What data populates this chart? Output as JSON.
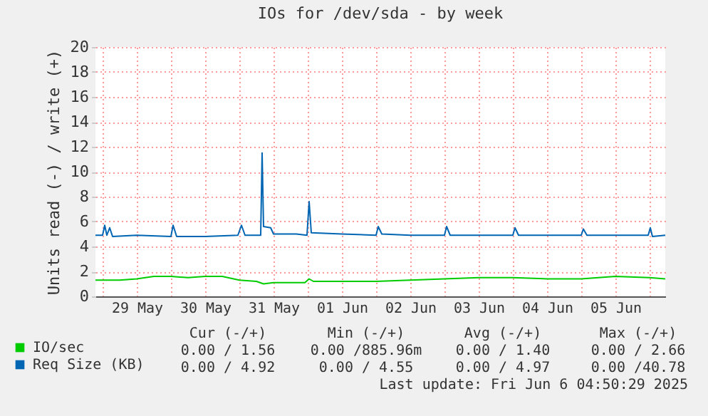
{
  "chart_data": {
    "type": "line",
    "title": "IOs for /dev/sda - by week",
    "ylabel": "Units read (-) / write (+)",
    "xlim": [
      "2025-05-28T21:30",
      "2025-06-06T05:30"
    ],
    "xticks": [
      {
        "value": "2025-05-29T00:00",
        "label": null
      },
      {
        "value": "2025-05-29T12:00",
        "label": "29 May"
      },
      {
        "value": "2025-05-30T00:00",
        "label": null
      },
      {
        "value": "2025-05-30T12:00",
        "label": "30 May"
      },
      {
        "value": "2025-05-31T00:00",
        "label": null
      },
      {
        "value": "2025-05-31T12:00",
        "label": "31 May"
      },
      {
        "value": "2025-06-01T00:00",
        "label": null
      },
      {
        "value": "2025-06-01T12:00",
        "label": "01 Jun"
      },
      {
        "value": "2025-06-02T00:00",
        "label": null
      },
      {
        "value": "2025-06-02T12:00",
        "label": "02 Jun"
      },
      {
        "value": "2025-06-03T00:00",
        "label": null
      },
      {
        "value": "2025-06-03T12:00",
        "label": "03 Jun"
      },
      {
        "value": "2025-06-04T00:00",
        "label": null
      },
      {
        "value": "2025-06-04T12:00",
        "label": "04 Jun"
      },
      {
        "value": "2025-06-05T00:00",
        "label": null
      },
      {
        "value": "2025-06-05T12:00",
        "label": "05 Jun"
      },
      {
        "value": "2025-06-06T00:00",
        "label": null
      }
    ],
    "ylim": [
      0,
      20
    ],
    "yticks": [
      0,
      2,
      4,
      6,
      8,
      10,
      12,
      14,
      16,
      18,
      20
    ],
    "grid": true,
    "legend": "bottom left",
    "series": [
      {
        "name": "IO/sec",
        "color": "#00cc00",
        "x": [
          "2025-05-28T21:30",
          "2025-05-29T06:00",
          "2025-05-29T12:00",
          "2025-05-29T18:00",
          "2025-05-30T00:00",
          "2025-05-30T06:00",
          "2025-05-30T12:00",
          "2025-05-30T18:00",
          "2025-05-31T00:00",
          "2025-05-31T06:00",
          "2025-05-31T08:30",
          "2025-05-31T12:00",
          "2025-05-31T23:00",
          "2025-06-01T00:30",
          "2025-06-01T02:00",
          "2025-06-01T12:00",
          "2025-06-02T00:00",
          "2025-06-02T12:00",
          "2025-06-03T00:00",
          "2025-06-03T12:00",
          "2025-06-04T00:00",
          "2025-06-04T12:00",
          "2025-06-05T00:00",
          "2025-06-05T12:00",
          "2025-06-06T00:00",
          "2025-06-06T05:30"
        ],
        "values": [
          1.3,
          1.3,
          1.4,
          1.6,
          1.6,
          1.5,
          1.6,
          1.6,
          1.3,
          1.2,
          1.0,
          1.1,
          1.1,
          1.4,
          1.2,
          1.2,
          1.2,
          1.3,
          1.4,
          1.5,
          1.5,
          1.4,
          1.4,
          1.6,
          1.5,
          1.4
        ]
      },
      {
        "name": "Req Size (KB)",
        "color": "#0066b3",
        "x": [
          "2025-05-28T21:30",
          "2025-05-29T00:00",
          "2025-05-29T00:45",
          "2025-05-29T01:30",
          "2025-05-29T02:30",
          "2025-05-29T03:30",
          "2025-05-29T12:00",
          "2025-05-30T00:00",
          "2025-05-30T00:45",
          "2025-05-30T02:00",
          "2025-05-30T12:00",
          "2025-05-30T23:30",
          "2025-05-31T00:45",
          "2025-05-31T02:00",
          "2025-05-31T07:30",
          "2025-05-31T08:00",
          "2025-05-31T08:30",
          "2025-05-31T11:00",
          "2025-05-31T12:00",
          "2025-05-31T20:00",
          "2025-05-31T23:45",
          "2025-06-01T00:30",
          "2025-06-01T01:15",
          "2025-06-01T12:00",
          "2025-06-02T00:00",
          "2025-06-02T00:45",
          "2025-06-02T02:00",
          "2025-06-02T12:00",
          "2025-06-03T00:00",
          "2025-06-03T00:45",
          "2025-06-03T02:00",
          "2025-06-03T12:00",
          "2025-06-04T00:00",
          "2025-06-04T00:45",
          "2025-06-04T02:00",
          "2025-06-04T12:00",
          "2025-06-05T00:00",
          "2025-06-05T00:45",
          "2025-06-05T02:00",
          "2025-06-05T12:00",
          "2025-06-05T23:30",
          "2025-06-06T00:15",
          "2025-06-06T01:00",
          "2025-06-06T05:30"
        ],
        "values": [
          4.9,
          4.9,
          5.7,
          4.9,
          5.5,
          4.8,
          4.9,
          4.8,
          5.7,
          4.8,
          4.8,
          4.9,
          5.7,
          4.9,
          4.9,
          11.5,
          5.6,
          5.5,
          5.0,
          5.0,
          4.9,
          7.6,
          5.1,
          5.0,
          4.9,
          5.6,
          5.0,
          4.9,
          4.9,
          5.6,
          4.9,
          4.9,
          4.9,
          5.5,
          4.9,
          4.9,
          4.9,
          5.4,
          4.9,
          4.9,
          4.9,
          5.5,
          4.8,
          4.9
        ]
      }
    ],
    "annotations": [
      "Cur (-/+)",
      "Min (-/+)",
      "Avg (-/+)",
      "Max (-/+)",
      "0.00 / 1.56",
      "0.00 /885.96m",
      "0.00 / 1.40",
      "0.00 / 2.66",
      "0.00 / 4.92",
      "0.00 / 4.55",
      "0.00 / 4.97",
      "0.00 /40.78",
      "Last update: Fri Jun  6 04:50:29 2025"
    ]
  }
}
